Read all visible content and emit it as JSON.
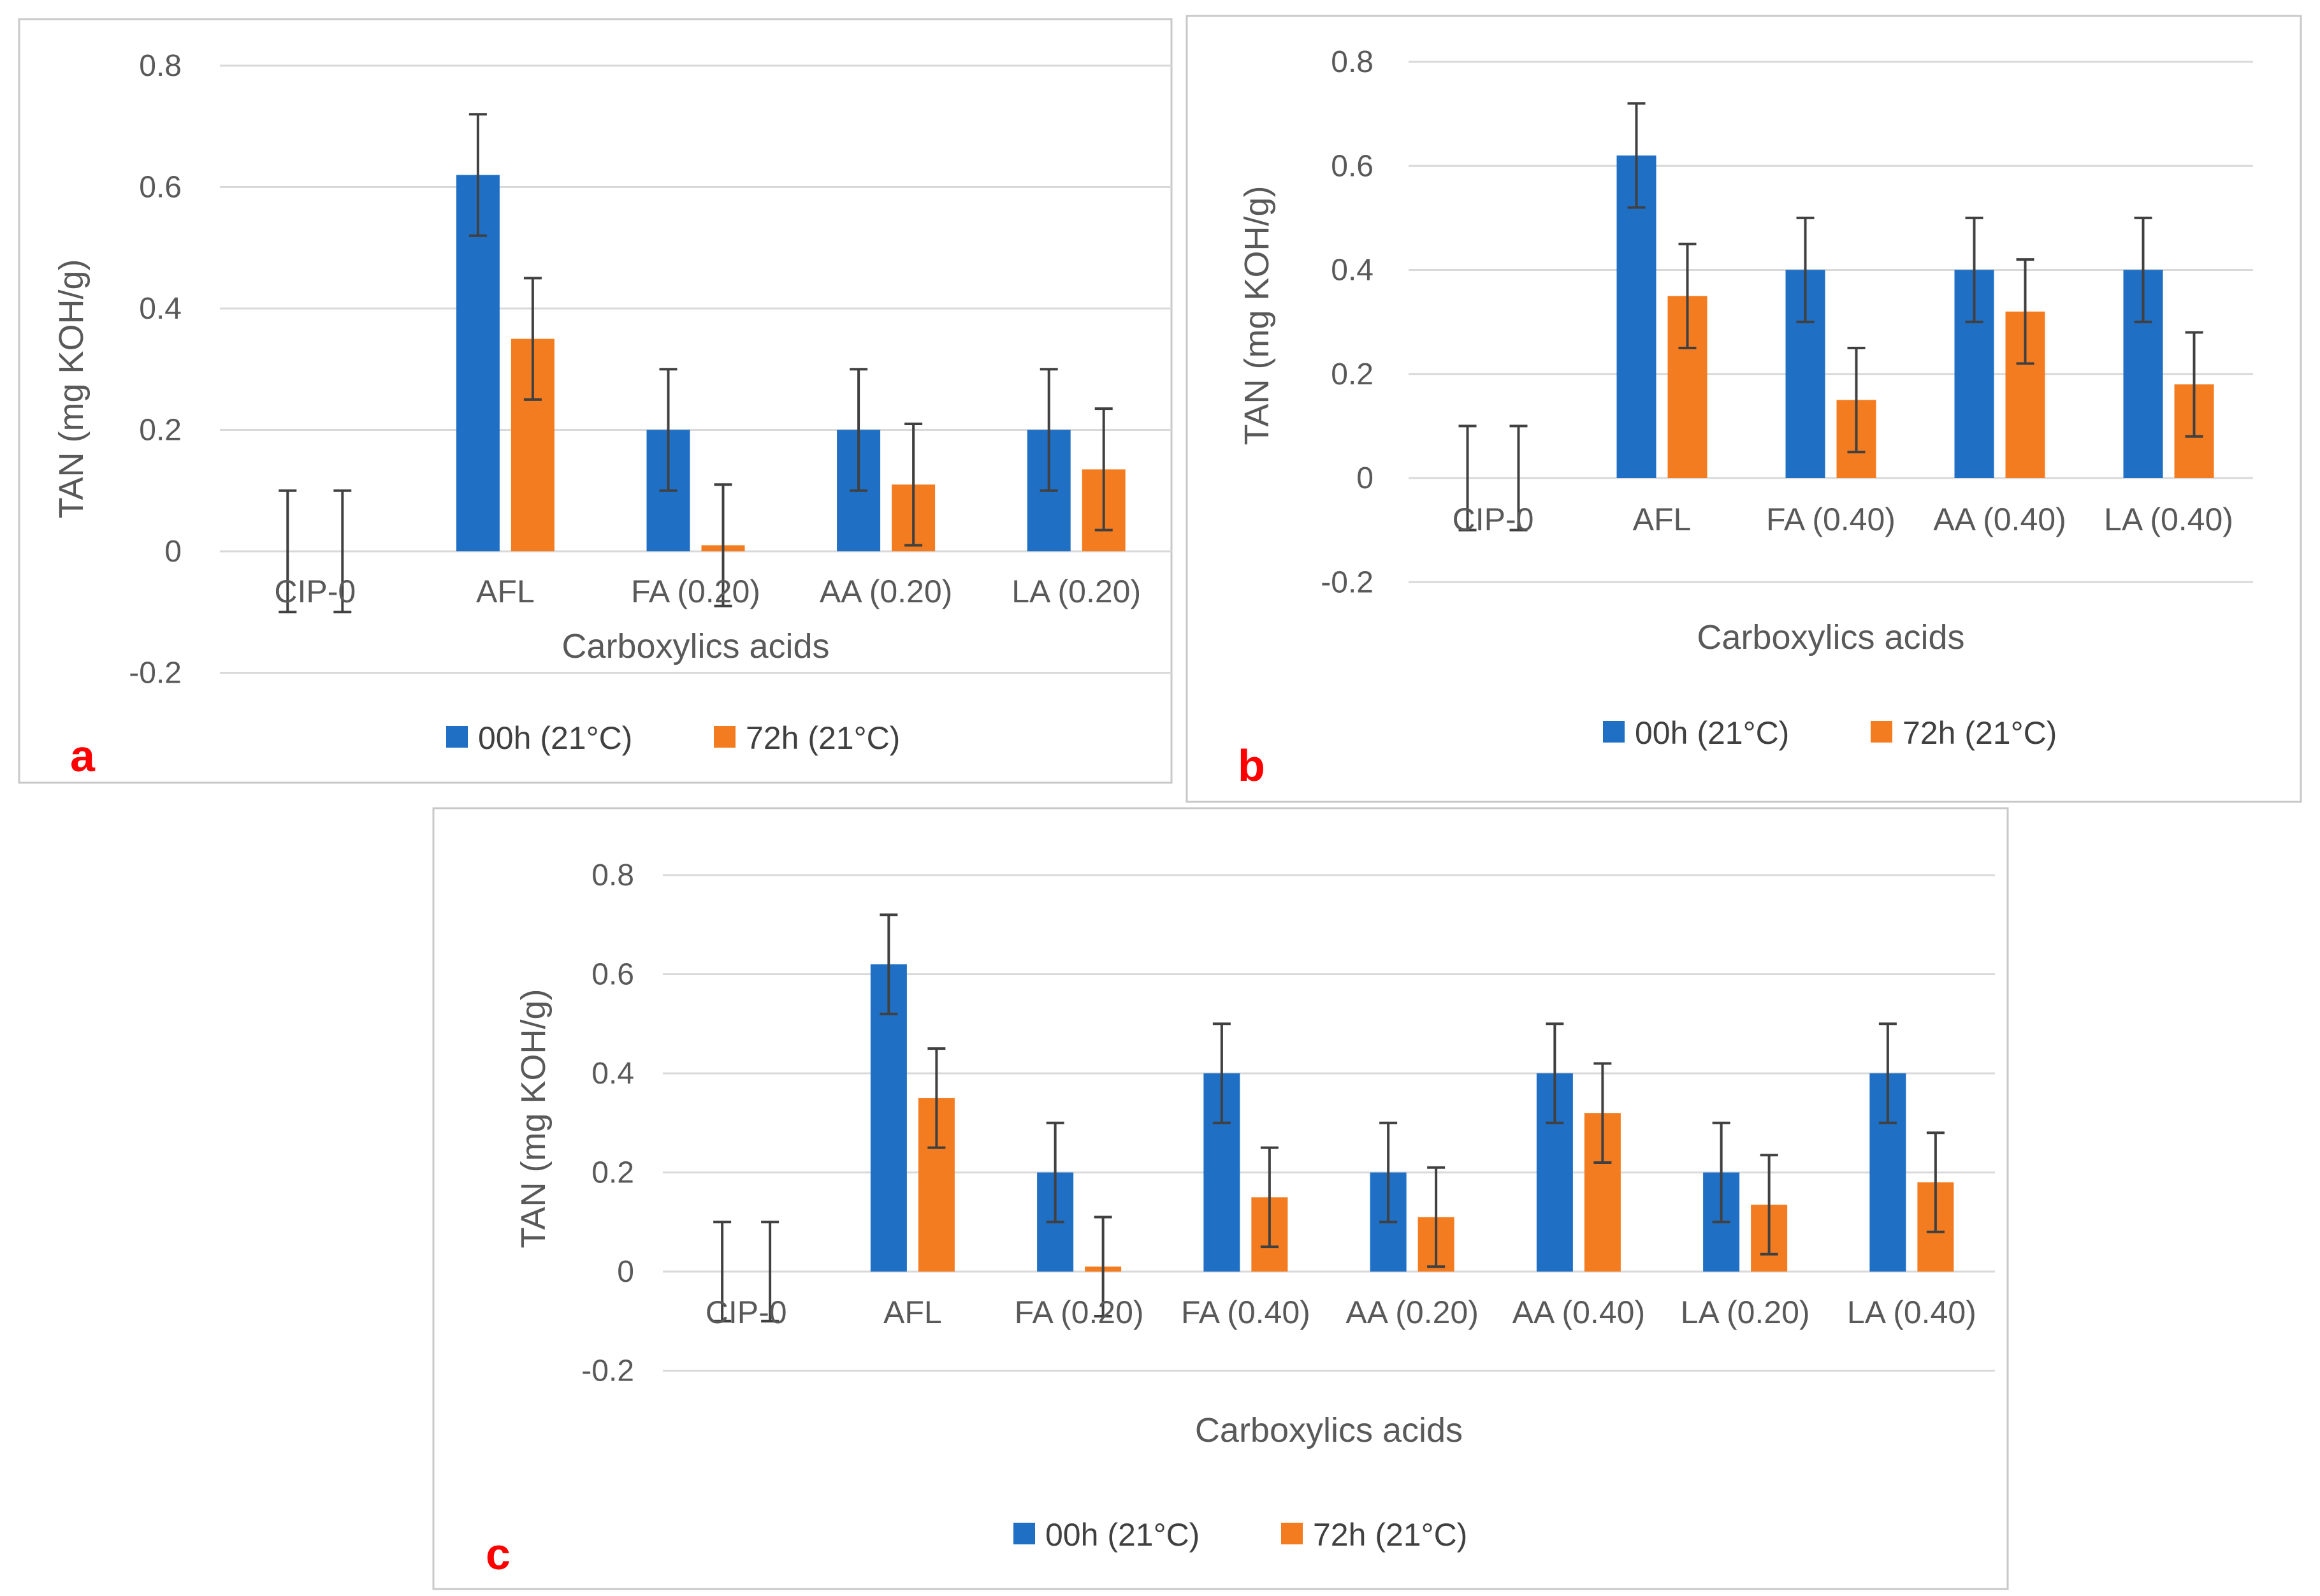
{
  "chart_data": [
    {
      "panel": "a",
      "type": "bar",
      "title": "",
      "xlabel": "Carboxylics acids",
      "ylabel": "TAN (mg KOH/g)",
      "ylim": [
        -0.2,
        0.8
      ],
      "yticks": [
        "-0.2",
        "0",
        "0.2",
        "0.4",
        "0.6",
        "0.8"
      ],
      "grid": true,
      "legend_position": "bottom",
      "categories": [
        "CIP-0",
        "AFL",
        "FA (0.20)",
        "AA (0.20)",
        "LA (0.20)"
      ],
      "series": [
        {
          "name": "00h (21°C)",
          "color": "#1f6fc5",
          "values": [
            0,
            0.62,
            0.2,
            0.2,
            0.2
          ],
          "errors": [
            0.1,
            0.1,
            0.1,
            0.1,
            0.1
          ]
        },
        {
          "name": "72h (21°C)",
          "color": "#f47c20",
          "values": [
            0,
            0.35,
            0.01,
            0.11,
            0.135
          ],
          "errors": [
            0.1,
            0.1,
            0.1,
            0.1,
            0.1
          ]
        }
      ]
    },
    {
      "panel": "b",
      "type": "bar",
      "title": "",
      "xlabel": "Carboxylics acids",
      "ylabel": "TAN (mg KOH/g)",
      "ylim": [
        -0.2,
        0.8
      ],
      "yticks": [
        "-0.2",
        "0",
        "0.2",
        "0.4",
        "0.6",
        "0.8"
      ],
      "grid": true,
      "legend_position": "bottom",
      "categories": [
        "CIP-0",
        "AFL",
        "FA (0.40)",
        "AA (0.40)",
        "LA (0.40)"
      ],
      "series": [
        {
          "name": "00h (21°C)",
          "color": "#1f6fc5",
          "values": [
            0,
            0.62,
            0.4,
            0.4,
            0.4
          ],
          "errors": [
            0.1,
            0.1,
            0.1,
            0.1,
            0.1
          ]
        },
        {
          "name": "72h (21°C)",
          "color": "#f47c20",
          "values": [
            0,
            0.35,
            0.15,
            0.32,
            0.18
          ],
          "errors": [
            0.1,
            0.1,
            0.1,
            0.1,
            0.1
          ]
        }
      ]
    },
    {
      "panel": "c",
      "type": "bar",
      "title": "",
      "xlabel": "Carboxylics acids",
      "ylabel": "TAN (mg KOH/g)",
      "ylim": [
        -0.2,
        0.8
      ],
      "yticks": [
        "-0.2",
        "0",
        "0.2",
        "0.4",
        "0.6",
        "0.8"
      ],
      "grid": true,
      "legend_position": "bottom",
      "categories": [
        "CIP-0",
        "AFL",
        "FA (0.20)",
        "FA (0.40)",
        "AA (0.20)",
        "AA (0.40)",
        "LA (0.20)",
        "LA (0.40)"
      ],
      "series": [
        {
          "name": "00h (21°C)",
          "color": "#1f6fc5",
          "values": [
            0,
            0.62,
            0.2,
            0.4,
            0.2,
            0.4,
            0.2,
            0.4
          ],
          "errors": [
            0.1,
            0.1,
            0.1,
            0.1,
            0.1,
            0.1,
            0.1,
            0.1
          ]
        },
        {
          "name": "72h (21°C)",
          "color": "#f47c20",
          "values": [
            0,
            0.35,
            0.01,
            0.15,
            0.11,
            0.32,
            0.135,
            0.18
          ],
          "errors": [
            0.1,
            0.1,
            0.1,
            0.1,
            0.1,
            0.1,
            0.1,
            0.1
          ]
        }
      ]
    }
  ]
}
